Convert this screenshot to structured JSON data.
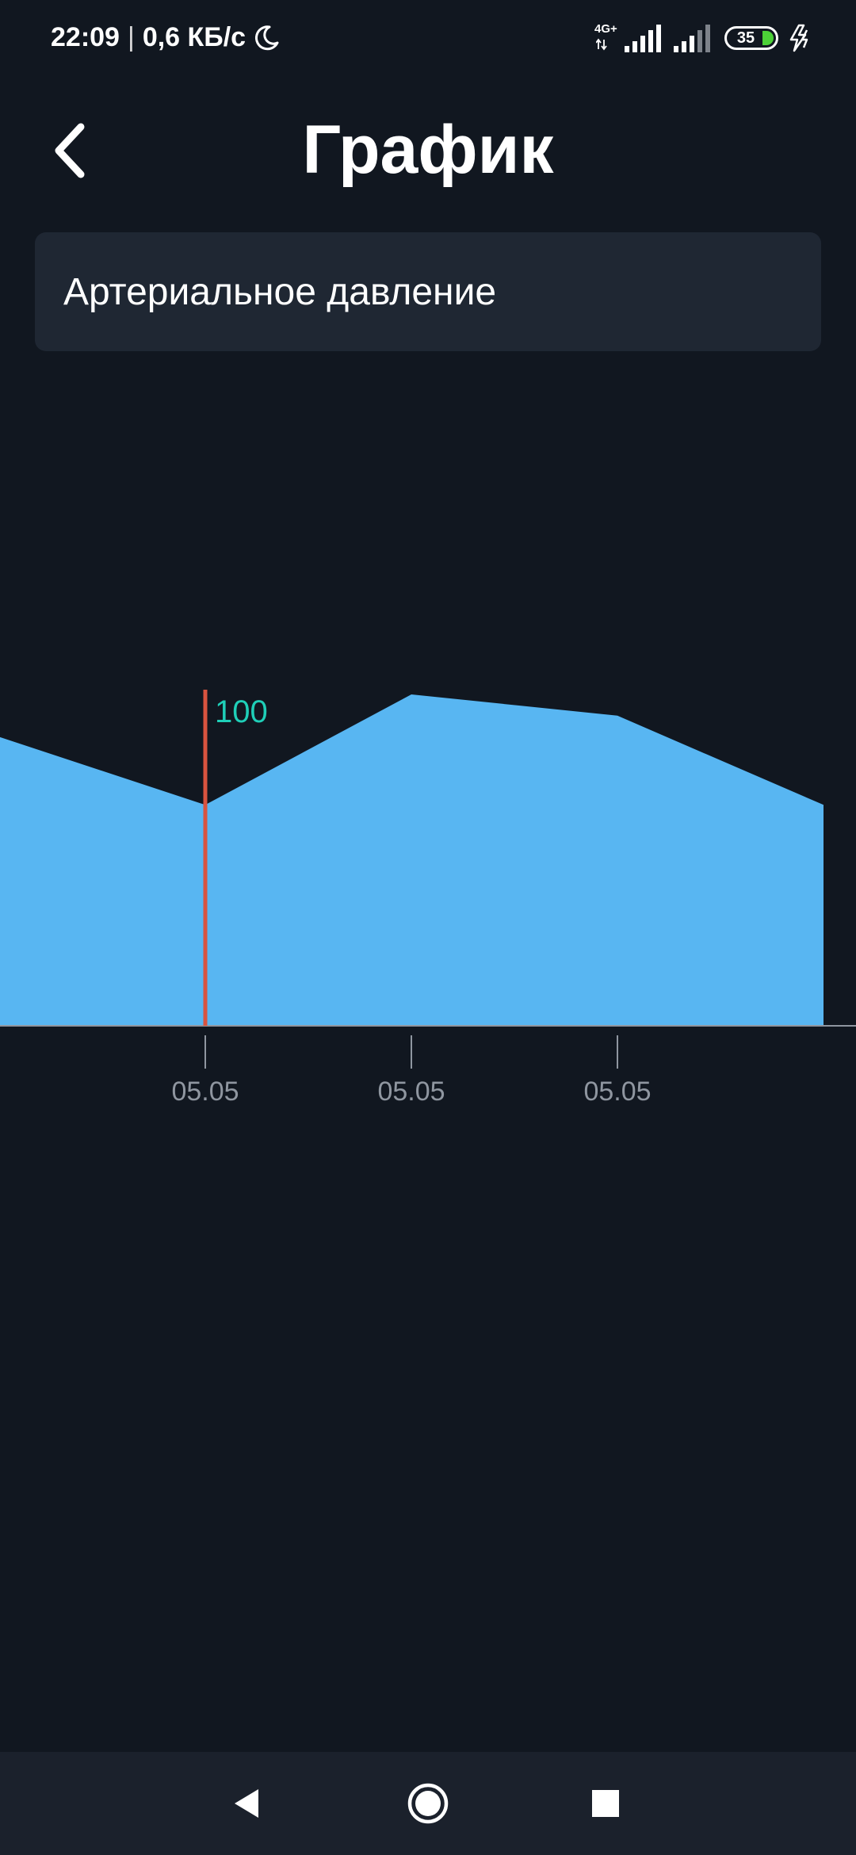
{
  "status_bar": {
    "time": "22:09",
    "net_speed": "0,6 КБ/с",
    "separator": "|",
    "network_type": "4G+",
    "battery_level": "35",
    "icons": [
      "moon-icon",
      "signal-icon",
      "charging-icon"
    ]
  },
  "header": {
    "title": "График",
    "back_icon": "chevron-left-icon"
  },
  "selector": {
    "value": "Артериальное давление"
  },
  "chart_data": {
    "type": "area",
    "title": "",
    "xlabel": "",
    "ylabel": "",
    "x": [
      "",
      "05.05",
      "05.05",
      "05.05",
      ""
    ],
    "series": [
      {
        "values": [
          108,
          100,
          113,
          110.5,
          100
        ]
      }
    ],
    "ylim": [
      74,
      116
    ],
    "selected_index": 1,
    "selected_label": "100",
    "colors": {
      "area": "#58b6f2",
      "marker": "#d9533f",
      "marker_label": "#1fcfb8",
      "axis": "#8f96a0"
    },
    "grid": false
  },
  "nav_bar": {
    "icons": [
      "back-triangle-icon",
      "home-circle-icon",
      "recents-square-icon"
    ]
  }
}
